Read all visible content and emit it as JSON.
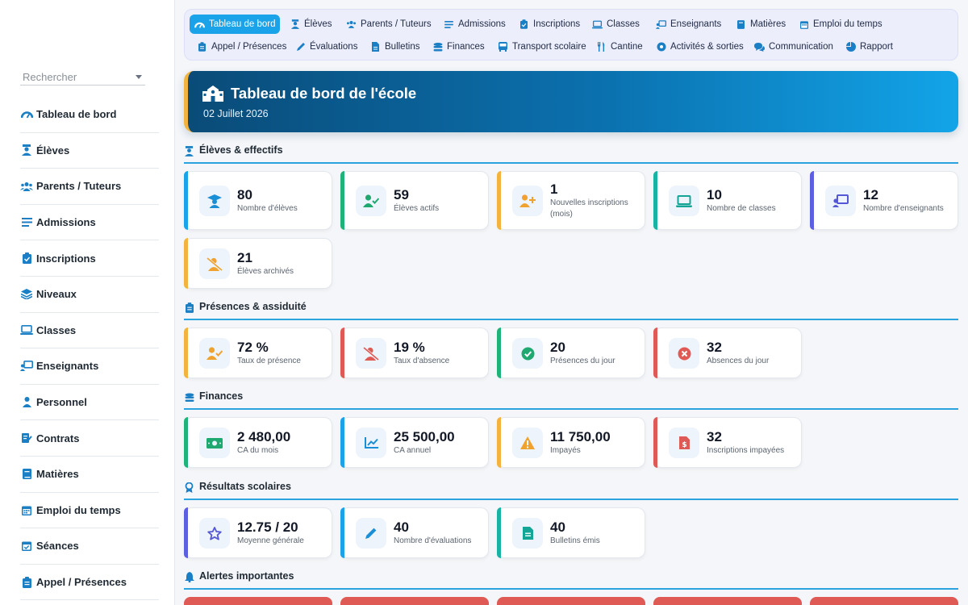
{
  "sidebar": {
    "search_placeholder": "Rechercher",
    "items": [
      {
        "label": "Tableau de bord",
        "icon": "dashboard-icon"
      },
      {
        "label": "Élèves",
        "icon": "student-icon"
      },
      {
        "label": "Parents / Tuteurs",
        "icon": "users-icon"
      },
      {
        "label": "Admissions",
        "icon": "list-icon"
      },
      {
        "label": "Inscriptions",
        "icon": "clipboard-check-icon"
      },
      {
        "label": "Niveaux",
        "icon": "layers-icon"
      },
      {
        "label": "Classes",
        "icon": "laptop-icon"
      },
      {
        "label": "Enseignants",
        "icon": "teacher-icon"
      },
      {
        "label": "Personnel",
        "icon": "user-tie-icon"
      },
      {
        "label": "Contrats",
        "icon": "signature-icon"
      },
      {
        "label": "Matières",
        "icon": "book-icon"
      },
      {
        "label": "Emploi du temps",
        "icon": "calendar-icon"
      },
      {
        "label": "Séances",
        "icon": "calendar-check-icon"
      },
      {
        "label": "Appel / Présences",
        "icon": "clipboard-list-icon"
      }
    ]
  },
  "topnav": {
    "row1": [
      {
        "label": "Tableau de bord",
        "active": true
      },
      {
        "label": "Élèves"
      },
      {
        "label": "Parents / Tuteurs"
      },
      {
        "label": "Admissions"
      },
      {
        "label": "Inscriptions"
      },
      {
        "label": "Classes"
      },
      {
        "label": "Enseignants"
      },
      {
        "label": "Matières"
      },
      {
        "label": "Emploi du temps"
      }
    ],
    "row2": [
      {
        "label": "Appel / Présences"
      },
      {
        "label": "Évaluations"
      },
      {
        "label": "Bulletins"
      },
      {
        "label": "Finances"
      },
      {
        "label": "Transport scolaire"
      },
      {
        "label": "Cantine"
      },
      {
        "label": "Activités & sorties"
      },
      {
        "label": "Communication"
      },
      {
        "label": "Rapport"
      }
    ]
  },
  "hero": {
    "title": "Tableau de bord de l'école",
    "date": "02 Juillet 2026"
  },
  "sections": {
    "eleves": {
      "title": "Élèves & effectifs",
      "cards": [
        {
          "value": "80",
          "label": "Nombre d'élèves",
          "accent": "#1aa3e8",
          "icon_color": "#1a8fd6"
        },
        {
          "value": "59",
          "label": "Élèves actifs",
          "accent": "#1fb37a",
          "icon_color": "#1fa870"
        },
        {
          "value": "1",
          "label": "Nouvelles inscriptions (mois)",
          "accent": "#f3b43f",
          "icon_color": "#f0a22e"
        },
        {
          "value": "10",
          "label": "Nombre de classes",
          "accent": "#17b3a3",
          "icon_color": "#14a596"
        },
        {
          "value": "12",
          "label": "Nombre d'enseignants",
          "accent": "#5b5fe0",
          "icon_color": "#5558d6"
        },
        {
          "value": "21",
          "label": "Élèves archivés",
          "accent": "#f3b43f",
          "icon_color": "#f0a22e"
        }
      ]
    },
    "presences": {
      "title": "Présences & assiduité",
      "cards": [
        {
          "value": "72 %",
          "label": "Taux de présence",
          "accent": "#f3b43f",
          "icon_color": "#f0a22e"
        },
        {
          "value": "19 %",
          "label": "Taux d'absence",
          "accent": "#e05a55",
          "icon_color": "#e05a55"
        },
        {
          "value": "20",
          "label": "Présences du jour",
          "accent": "#1fb37a",
          "icon_color": "#1fa870"
        },
        {
          "value": "32",
          "label": "Absences du jour",
          "accent": "#e05a55",
          "icon_color": "#e05a55"
        }
      ]
    },
    "finances": {
      "title": "Finances",
      "cards": [
        {
          "value": "2 480,00",
          "label": "CA du mois",
          "accent": "#1fb37a",
          "icon_color": "#1fa870"
        },
        {
          "value": "25 500,00",
          "label": "CA annuel",
          "accent": "#1aa3e8",
          "icon_color": "#1a8fd6"
        },
        {
          "value": "11 750,00",
          "label": "Impayés",
          "accent": "#f3b43f",
          "icon_color": "#f0a22e"
        },
        {
          "value": "32",
          "label": "Inscriptions impayées",
          "accent": "#e05a55",
          "icon_color": "#e05a55"
        }
      ]
    },
    "resultats": {
      "title": "Résultats scolaires",
      "cards": [
        {
          "value": "12.75 / 20",
          "label": "Moyenne générale",
          "accent": "#5b5fe0",
          "icon_color": "#5558d6"
        },
        {
          "value": "40",
          "label": "Nombre d'évaluations",
          "accent": "#1aa3e8",
          "icon_color": "#1a8fd6"
        },
        {
          "value": "40",
          "label": "Bulletins émis",
          "accent": "#17b3a3",
          "icon_color": "#14a596"
        }
      ]
    },
    "alertes": {
      "title": "Alertes importantes"
    }
  },
  "colors": {
    "primary": "#1aa3e8",
    "section_line": "#2aa3df",
    "hero_start": "#0a4b78",
    "hero_end": "#12a4e8",
    "alert": "#e05a55"
  }
}
